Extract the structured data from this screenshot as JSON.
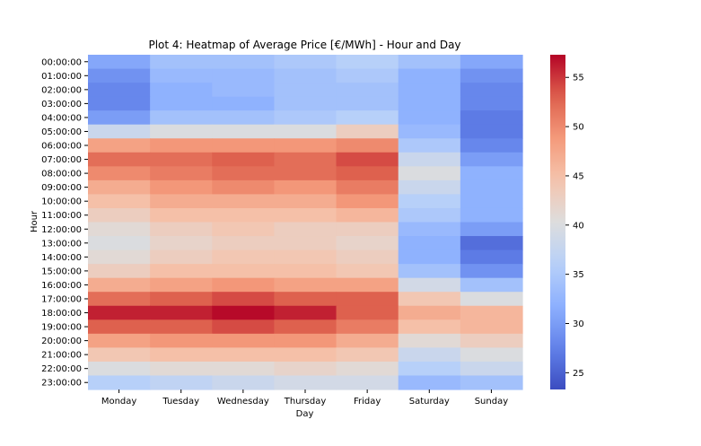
{
  "chart_data": {
    "type": "heatmap",
    "title": "Plot 4: Heatmap of Average Price [€/MWh] - Hour and Day",
    "xlabel": "Day",
    "ylabel": "Hour",
    "x_categories": [
      "Monday",
      "Tuesday",
      "Wednesday",
      "Thursday",
      "Friday",
      "Saturday",
      "Sunday"
    ],
    "y_categories": [
      "00:00:00",
      "01:00:00",
      "02:00:00",
      "03:00:00",
      "04:00:00",
      "05:00:00",
      "06:00:00",
      "07:00:00",
      "08:00:00",
      "09:00:00",
      "10:00:00",
      "11:00:00",
      "12:00:00",
      "13:00:00",
      "14:00:00",
      "15:00:00",
      "16:00:00",
      "17:00:00",
      "18:00:00",
      "19:00:00",
      "20:00:00",
      "21:00:00",
      "22:00:00",
      "23:00:00"
    ],
    "values": [
      [
        31,
        34,
        34,
        35,
        36,
        34,
        31
      ],
      [
        29,
        33,
        33,
        34,
        35,
        32,
        29
      ],
      [
        28,
        32,
        33,
        34,
        34,
        32,
        28
      ],
      [
        28,
        32,
        32,
        34,
        34,
        32,
        28
      ],
      [
        30,
        34,
        34,
        35,
        36,
        32,
        27
      ],
      [
        38,
        40,
        40,
        40,
        43,
        33,
        27
      ],
      [
        48,
        49,
        49,
        49,
        50,
        35,
        28
      ],
      [
        52,
        52,
        53,
        52,
        54,
        38,
        30
      ],
      [
        50,
        51,
        52,
        52,
        53,
        40,
        32
      ],
      [
        47,
        49,
        50,
        49,
        51,
        38,
        32
      ],
      [
        45,
        47,
        47,
        47,
        49,
        36,
        32
      ],
      [
        43,
        45,
        45,
        45,
        46,
        35,
        32
      ],
      [
        41,
        43,
        44,
        43,
        43,
        33,
        30
      ],
      [
        40,
        42,
        43,
        43,
        42,
        32,
        26
      ],
      [
        41,
        43,
        44,
        44,
        43,
        32,
        27
      ],
      [
        43,
        45,
        45,
        45,
        44,
        34,
        29
      ],
      [
        47,
        48,
        49,
        48,
        48,
        39,
        34
      ],
      [
        52,
        53,
        54,
        53,
        53,
        44,
        40
      ],
      [
        56,
        56,
        57,
        56,
        53,
        47,
        46
      ],
      [
        53,
        53,
        54,
        53,
        51,
        45,
        46
      ],
      [
        48,
        49,
        49,
        49,
        47,
        41,
        43
      ],
      [
        44,
        45,
        45,
        45,
        44,
        38,
        40
      ],
      [
        40,
        41,
        41,
        42,
        41,
        36,
        38
      ],
      [
        36,
        37,
        38,
        39,
        39,
        33,
        34
      ]
    ],
    "colorbar": {
      "min": 23.3,
      "max": 57.3,
      "ticks": [
        25,
        30,
        35,
        40,
        45,
        50,
        55
      ],
      "colormap": "coolwarm"
    }
  }
}
